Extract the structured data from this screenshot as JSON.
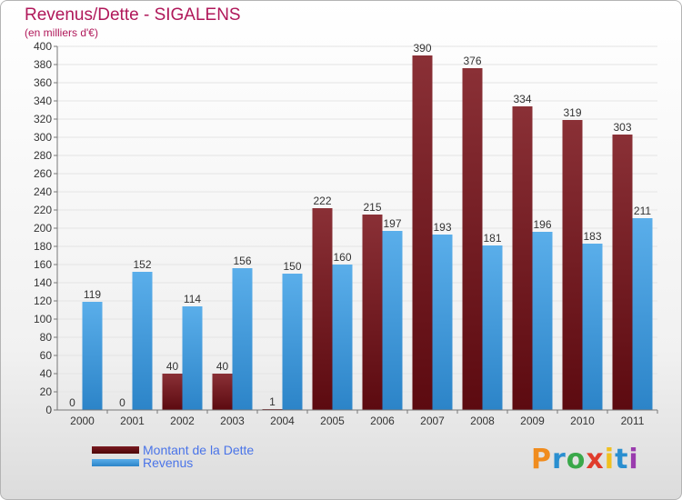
{
  "brand": {
    "logo_text": "Proxiti",
    "logo_colors": [
      "#f08c1e",
      "#2a8fd0",
      "#3aa84a",
      "#e03c2c",
      "#f0c020",
      "#2a8fd0",
      "#9a3cae"
    ]
  },
  "chart_data": {
    "type": "bar",
    "title": "Revenus/Dette - SIGALENS",
    "subtitle": "(en milliers d'€)",
    "xlabel": "",
    "ylabel": "",
    "ylim": [
      0,
      400
    ],
    "ytick_step": 20,
    "grid": true,
    "legend_position": "bottom-left",
    "categories": [
      "2000",
      "2001",
      "2002",
      "2003",
      "2004",
      "2005",
      "2006",
      "2007",
      "2008",
      "2009",
      "2010",
      "2011"
    ],
    "series": [
      {
        "name": "Montant de la Dette",
        "color": "#6e1419",
        "values": [
          0,
          0,
          40,
          40,
          1,
          222,
          215,
          390,
          376,
          334,
          319,
          303
        ]
      },
      {
        "name": "Revenus",
        "color": "#3c96dc",
        "values": [
          119,
          152,
          114,
          156,
          150,
          160,
          197,
          193,
          181,
          196,
          183,
          211
        ]
      }
    ]
  }
}
